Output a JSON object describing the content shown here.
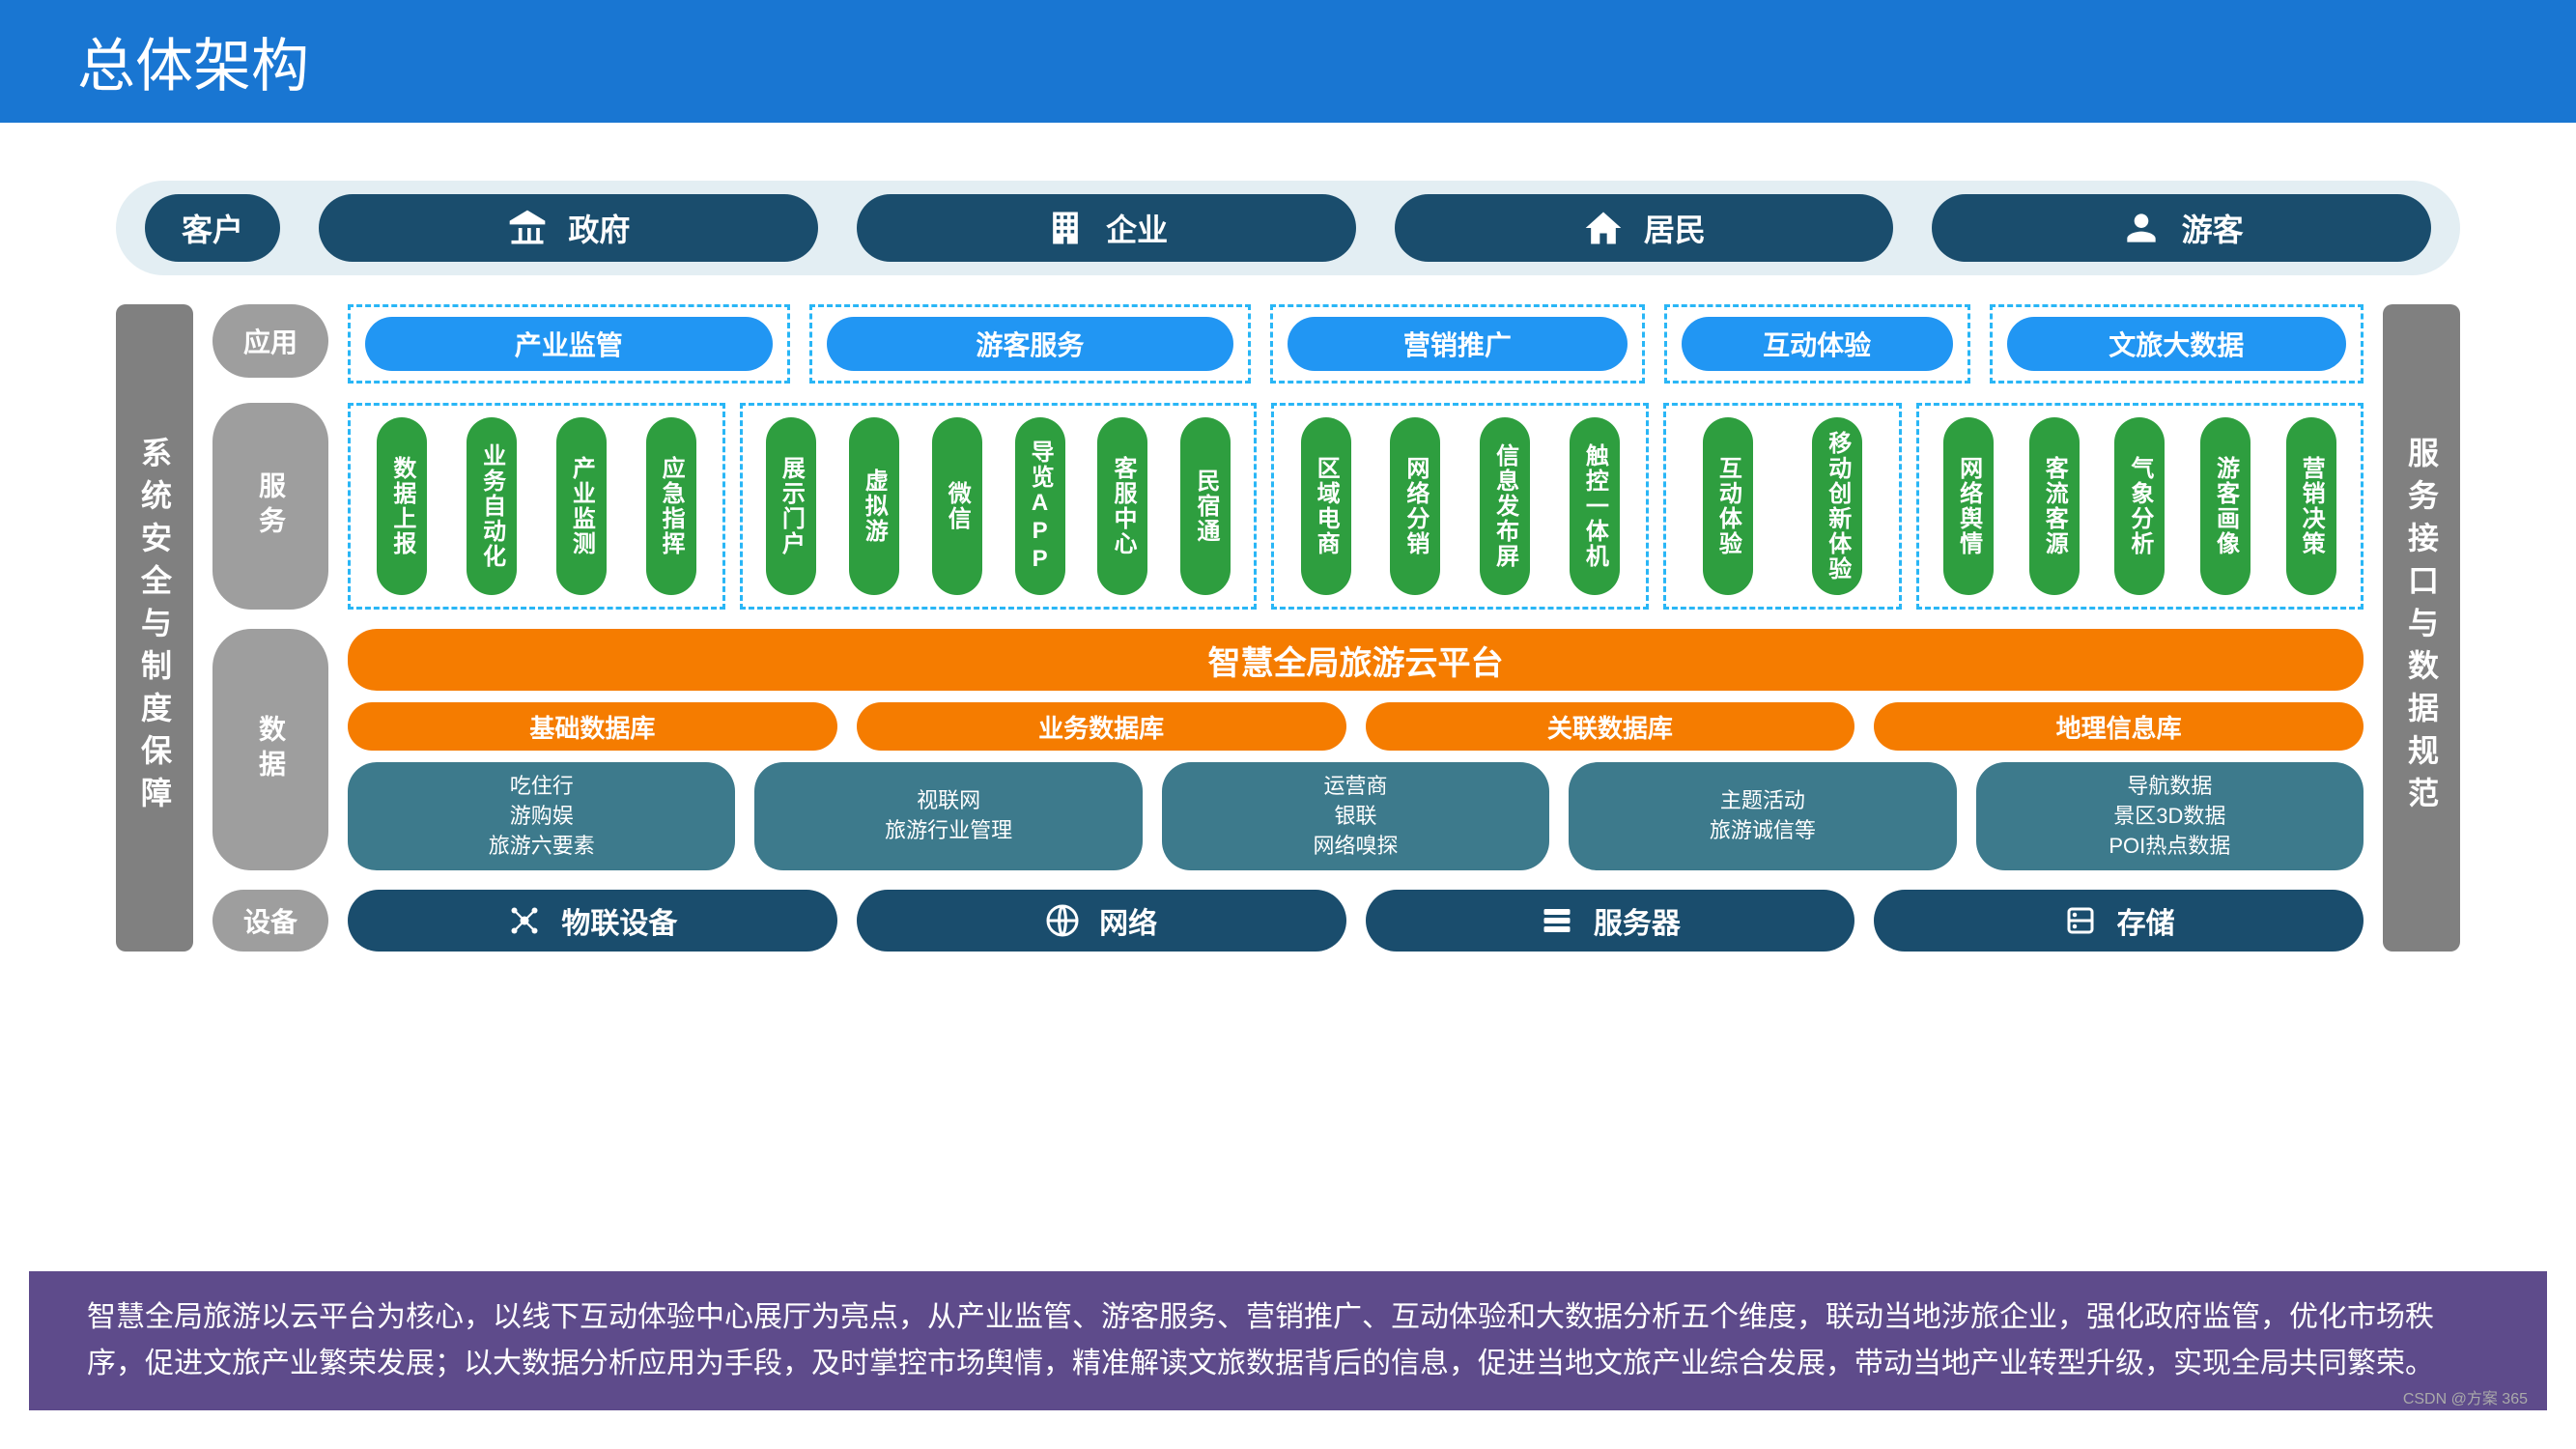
{
  "title": "总体架构",
  "colors": {
    "title_bg": "#1976d2",
    "dark": "#1a4d6d",
    "gray": "#9e9e9e",
    "blue": "#2196f3",
    "green": "#2e9e3f",
    "orange": "#f57c00",
    "teal": "#3d7a8c",
    "border": "#29b6f6",
    "footer": "#5e4b8b",
    "cust_bg": "#e3eef3",
    "side": "#808080"
  },
  "customers": {
    "label": "客户",
    "items": [
      "政府",
      "企业",
      "居民",
      "游客"
    ]
  },
  "left_side": "系统安全与制度保障",
  "right_side": "服务接口与数据规范",
  "app_layer": {
    "label": "应用",
    "items": [
      "产业监管",
      "游客服务",
      "营销推广",
      "互动体验",
      "文旅大数据"
    ]
  },
  "service_layer": {
    "label": "服务",
    "groups": [
      {
        "w": 1,
        "items": [
          "数据上报",
          "业务自动化",
          "产业监测",
          "应急指挥"
        ]
      },
      {
        "w": 1.4,
        "items": [
          "展示门户",
          "虚拟游",
          "微信",
          "导览APP",
          "客服中心",
          "民宿通"
        ]
      },
      {
        "w": 1,
        "items": [
          "区域电商",
          "网络分销",
          "信息发布屏",
          "触控一体机"
        ]
      },
      {
        "w": 0.6,
        "items": [
          "互动体验",
          "移动创新体验"
        ]
      },
      {
        "w": 1.2,
        "items": [
          "网络舆情",
          "客流客源",
          "气象分析",
          "游客画像",
          "营销决策"
        ]
      }
    ]
  },
  "data_layer": {
    "label": "数据",
    "platform": "智慧全局旅游云平台",
    "databases": [
      "基础数据库",
      "业务数据库",
      "关联数据库",
      "地理信息库"
    ],
    "details": [
      [
        "吃住行",
        "游购娱",
        "旅游六要素"
      ],
      [
        "视联网",
        "旅游行业管理"
      ],
      [
        "运营商",
        "银联",
        "网络嗅探"
      ],
      [
        "主题活动",
        "旅游诚信等"
      ],
      [
        "导航数据",
        "景区3D数据",
        "POI热点数据"
      ]
    ]
  },
  "device_layer": {
    "label": "设备",
    "items": [
      "物联设备",
      "网络",
      "服务器",
      "存储"
    ]
  },
  "footer": "智慧全局旅游以云平台为核心，以线下互动体验中心展厅为亮点，从产业监管、游客服务、营销推广、互动体验和大数据分析五个维度，联动当地涉旅企业，强化政府监管，优化市场秩序，促进文旅产业繁荣发展；以大数据分析应用为手段，及时掌控市场舆情，精准解读文旅数据背后的信息，促进当地文旅产业综合发展，带动当地产业转型升级，实现全局共同繁荣。",
  "watermark": "CSDN @方案 365"
}
